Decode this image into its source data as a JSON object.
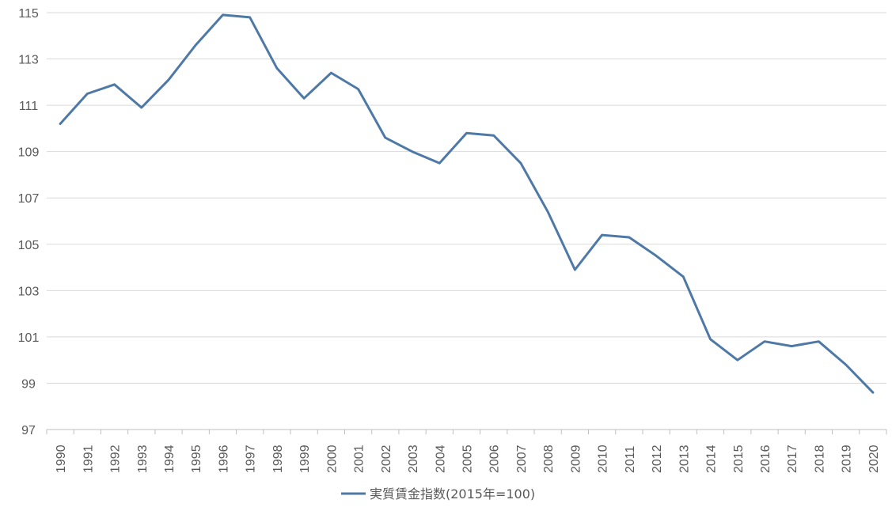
{
  "chart_data": {
    "type": "line",
    "title": "",
    "xlabel": "",
    "ylabel": "",
    "categories": [
      "1990",
      "1991",
      "1992",
      "1993",
      "1994",
      "1995",
      "1996",
      "1997",
      "1998",
      "1999",
      "2000",
      "2001",
      "2002",
      "2003",
      "2004",
      "2005",
      "2006",
      "2007",
      "2008",
      "2009",
      "2010",
      "2011",
      "2012",
      "2013",
      "2014",
      "2015",
      "2016",
      "2017",
      "2018",
      "2019",
      "2020"
    ],
    "series": [
      {
        "name": "実質賃金指数(2015年=100)",
        "color": "#4E79A7",
        "values": [
          110.2,
          111.5,
          111.9,
          110.9,
          112.1,
          113.6,
          114.9,
          114.8,
          112.6,
          111.3,
          112.4,
          111.7,
          109.6,
          109.0,
          108.5,
          109.8,
          109.7,
          108.5,
          106.4,
          103.9,
          105.4,
          105.3,
          104.5,
          103.6,
          100.9,
          100.0,
          100.8,
          100.6,
          100.8,
          99.8,
          98.6
        ]
      }
    ],
    "ylim": [
      97,
      115
    ],
    "yticks": [
      97,
      99,
      101,
      103,
      105,
      107,
      109,
      111,
      113,
      115
    ],
    "grid": true,
    "legend_position": "bottom"
  }
}
